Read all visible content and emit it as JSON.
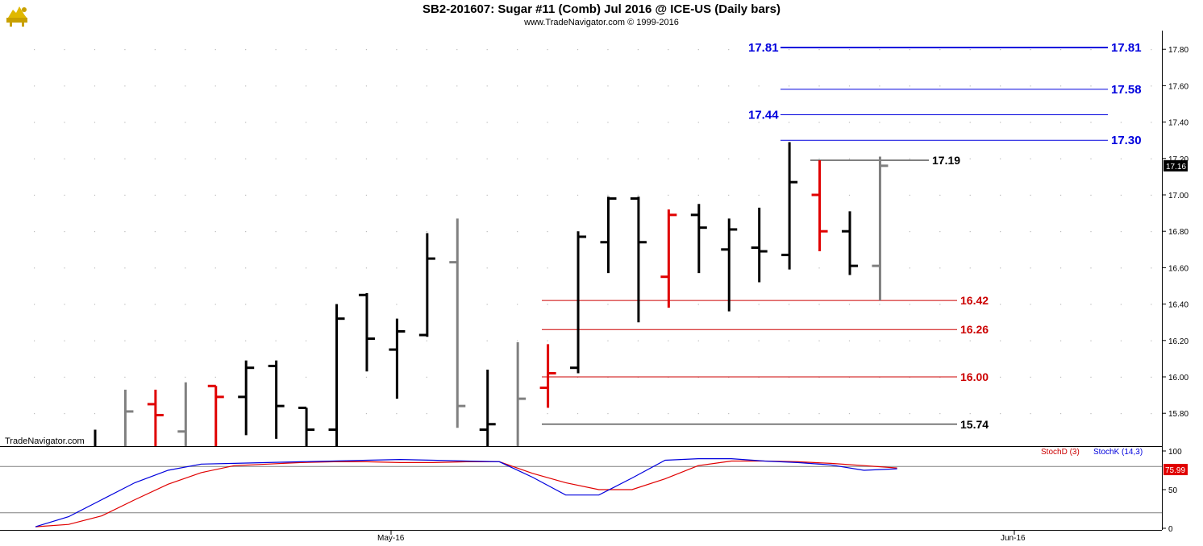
{
  "header": {
    "title": "SB2-201607:  Sugar #11 (Comb) Jul 2016 @ ICE-US  (Daily bars)",
    "subtitle": "www.TradeNavigator.com © 1999-2016",
    "logo_icon": "trade-navigator-bull-logo"
  },
  "watermark": "TradeNavigator.com",
  "last_price_label": "17.16",
  "stoch_value_label": "75.99",
  "colors": {
    "up": "#000000",
    "inside": "#808080",
    "down": "#e00000",
    "blue": "#0000dd",
    "red_level": "#cc0000"
  },
  "chart_data": [
    {
      "type": "ohlc",
      "x_axis": {
        "labels": [
          {
            "date": "May-16"
          },
          {
            "date": "Jun-16"
          }
        ]
      },
      "y_axis": {
        "range": [
          15.56,
          17.9
        ],
        "ticks": [
          "15.80",
          "16.00",
          "16.20",
          "16.40",
          "16.60",
          "16.80",
          "17.00",
          "17.20",
          "17.40",
          "17.60",
          "17.80"
        ]
      },
      "bars": [
        {
          "o": null,
          "h": 15.71,
          "l": 15.56,
          "c": null,
          "color": "black"
        },
        {
          "o": null,
          "h": 15.93,
          "l": 15.56,
          "c": 15.81,
          "color": "gray"
        },
        {
          "o": 15.85,
          "h": 15.93,
          "l": 15.56,
          "c": 15.79,
          "color": "red"
        },
        {
          "o": 15.7,
          "h": 15.97,
          "l": 15.56,
          "c": null,
          "color": "gray"
        },
        {
          "o": 15.95,
          "h": 15.95,
          "l": 15.56,
          "c": 15.89,
          "color": "red"
        },
        {
          "o": 15.89,
          "h": 16.09,
          "l": 15.68,
          "c": 16.05,
          "color": "black"
        },
        {
          "o": 16.06,
          "h": 16.09,
          "l": 15.66,
          "c": 15.84,
          "color": "black"
        },
        {
          "o": 15.83,
          "h": 15.83,
          "l": 15.56,
          "c": 15.71,
          "color": "black"
        },
        {
          "o": 15.71,
          "h": 16.4,
          "l": 15.56,
          "c": 16.32,
          "color": "black"
        },
        {
          "o": 16.45,
          "h": 16.46,
          "l": 16.03,
          "c": 16.21,
          "color": "black"
        },
        {
          "o": 16.15,
          "h": 16.32,
          "l": 15.88,
          "c": 16.25,
          "color": "black"
        },
        {
          "o": 16.23,
          "h": 16.79,
          "l": 16.22,
          "c": 16.65,
          "color": "black"
        },
        {
          "o": 16.63,
          "h": 16.87,
          "l": 15.72,
          "c": 15.84,
          "color": "gray"
        },
        {
          "o": 15.71,
          "h": 16.04,
          "l": 15.56,
          "c": 15.74,
          "color": "black"
        },
        {
          "o": null,
          "h": 16.19,
          "l": 15.56,
          "c": 15.88,
          "color": "gray"
        },
        {
          "o": 15.94,
          "h": 16.18,
          "l": 15.83,
          "c": 16.02,
          "color": "red"
        },
        {
          "o": 16.05,
          "h": 16.8,
          "l": 16.02,
          "c": 16.77,
          "color": "black"
        },
        {
          "o": 16.74,
          "h": 16.99,
          "l": 16.57,
          "c": 16.98,
          "color": "black"
        },
        {
          "o": 16.98,
          "h": 16.99,
          "l": 16.3,
          "c": 16.74,
          "color": "black"
        },
        {
          "o": 16.55,
          "h": 16.92,
          "l": 16.38,
          "c": 16.89,
          "color": "red"
        },
        {
          "o": 16.89,
          "h": 16.95,
          "l": 16.57,
          "c": 16.82,
          "color": "black"
        },
        {
          "o": 16.7,
          "h": 16.87,
          "l": 16.36,
          "c": 16.81,
          "color": "black"
        },
        {
          "o": 16.71,
          "h": 16.93,
          "l": 16.52,
          "c": 16.69,
          "color": "black"
        },
        {
          "o": 16.67,
          "h": 17.29,
          "l": 16.59,
          "c": 17.07,
          "color": "black"
        },
        {
          "o": 17.0,
          "h": 17.19,
          "l": 16.69,
          "c": 16.8,
          "color": "red"
        },
        {
          "o": 16.8,
          "h": 16.91,
          "l": 16.56,
          "c": 16.61,
          "color": "black"
        },
        {
          "o": 16.61,
          "h": 17.21,
          "l": 16.42,
          "c": 17.16,
          "color": "gray"
        }
      ],
      "levels": [
        {
          "value": 17.81,
          "label_left": "17.81",
          "label_right": "17.81",
          "color": "blue",
          "style": "thick"
        },
        {
          "value": 17.58,
          "label_right": "17.58",
          "color": "blue",
          "style": "thin"
        },
        {
          "value": 17.44,
          "label_left": "17.44",
          "color": "blue",
          "style": "thin"
        },
        {
          "value": 17.3,
          "label_right": "17.30",
          "color": "blue",
          "style": "thin"
        },
        {
          "value": 17.19,
          "label_right": "17.19",
          "color": "black",
          "style": "thin"
        },
        {
          "value": 16.42,
          "label_right": "16.42",
          "color": "red",
          "style": "thin"
        },
        {
          "value": 16.26,
          "label_right": "16.26",
          "color": "red",
          "style": "thin"
        },
        {
          "value": 16.0,
          "label_right": "16.00",
          "color": "red",
          "style": "thin"
        },
        {
          "value": 15.74,
          "label_right": "15.74",
          "color": "black",
          "style": "thin"
        }
      ]
    },
    {
      "type": "line",
      "legend": [
        "StochD (3)",
        "StochK (14,3)"
      ],
      "y_axis": {
        "range": [
          0,
          100
        ],
        "ticks": [
          "0",
          "50",
          "100"
        ],
        "reference_lines": [
          20,
          80
        ]
      },
      "series": [
        {
          "name": "StochD (3)",
          "color": "red",
          "x": [
            0,
            1,
            2,
            3,
            4,
            5,
            6,
            7,
            8,
            9,
            10,
            11,
            12,
            13,
            14,
            15,
            16,
            17,
            18,
            19,
            20,
            21,
            22,
            23,
            24,
            25,
            26
          ],
          "values": [
            2,
            5,
            16,
            37,
            57,
            72,
            81,
            83,
            85,
            86,
            86,
            85,
            85,
            86,
            86,
            71,
            59,
            50,
            50,
            64,
            81,
            87,
            87,
            86,
            84,
            81,
            78
          ]
        },
        {
          "name": "StochK (14,3)",
          "color": "blue",
          "x": [
            0,
            1,
            2,
            3,
            4,
            5,
            6,
            7,
            8,
            9,
            10,
            11,
            12,
            13,
            14,
            15,
            16,
            17,
            18,
            19,
            20,
            21,
            22,
            23,
            24,
            25,
            26
          ],
          "values": [
            2,
            15,
            37,
            59,
            75,
            83,
            84,
            85,
            86,
            87,
            88,
            89,
            88,
            87,
            86,
            66,
            43,
            43,
            65,
            88,
            90,
            90,
            87,
            85,
            82,
            75,
            77
          ]
        }
      ]
    }
  ]
}
